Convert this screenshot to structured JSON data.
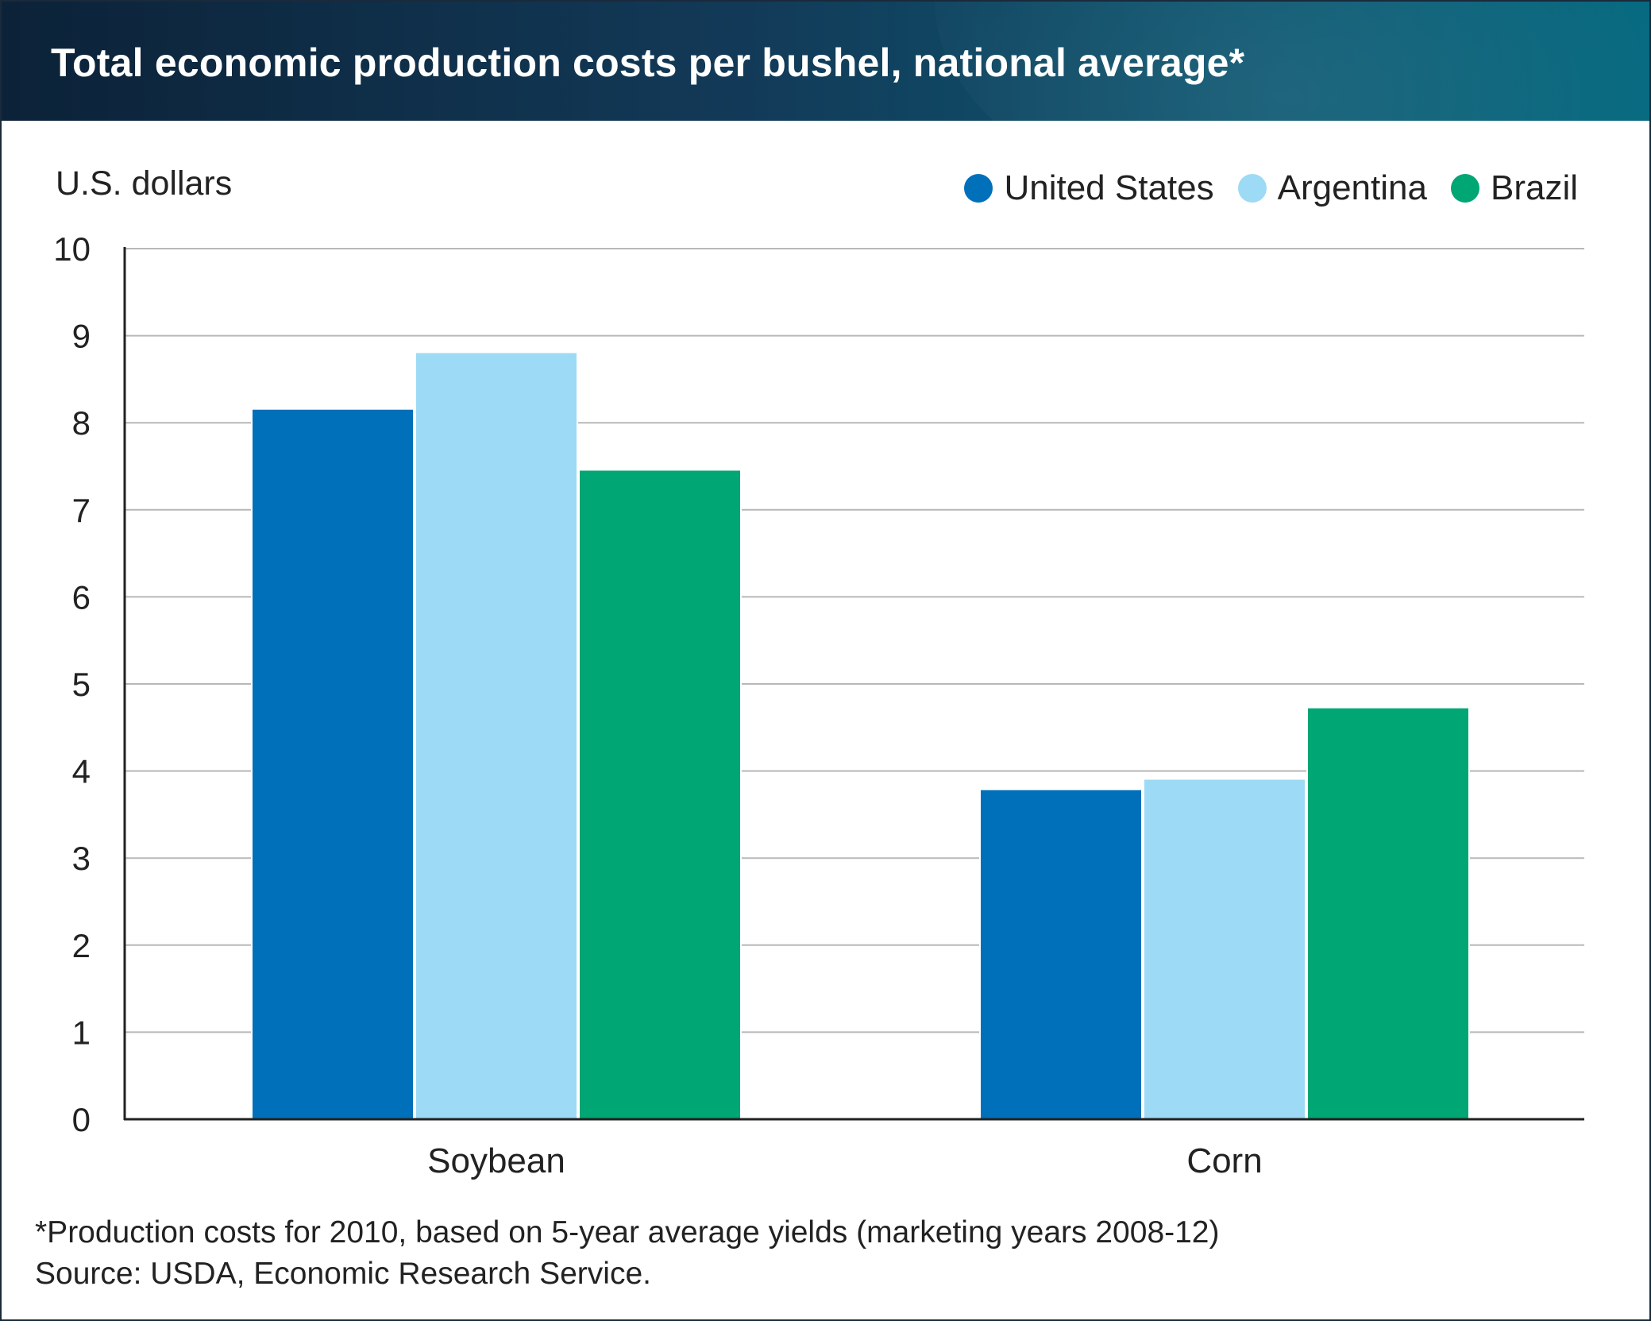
{
  "title": "Total economic production costs per bushel, national average*",
  "colors": {
    "United States": "#0070bb",
    "Argentina": "#9ddaf5",
    "Brazil": "#00a673"
  },
  "chart_data": {
    "type": "bar",
    "title": "Total economic production costs per bushel, national average*",
    "ylabel": "U.S. dollars",
    "xlabel": "",
    "ylim": [
      0,
      10
    ],
    "yticks": [
      0,
      1,
      2,
      3,
      4,
      5,
      6,
      7,
      8,
      9,
      10
    ],
    "grid": true,
    "legend": "top-right",
    "categories": [
      "Soybean",
      "Corn"
    ],
    "series": [
      {
        "name": "United States",
        "values": [
          8.15,
          3.78
        ]
      },
      {
        "name": "Argentina",
        "values": [
          8.8,
          3.9
        ]
      },
      {
        "name": "Brazil",
        "values": [
          7.45,
          4.72
        ]
      }
    ]
  },
  "footnote": "*Production costs for 2010, based on 5-year average yields (marketing years 2008-12)",
  "source": "Source: USDA, Economic Research Service."
}
